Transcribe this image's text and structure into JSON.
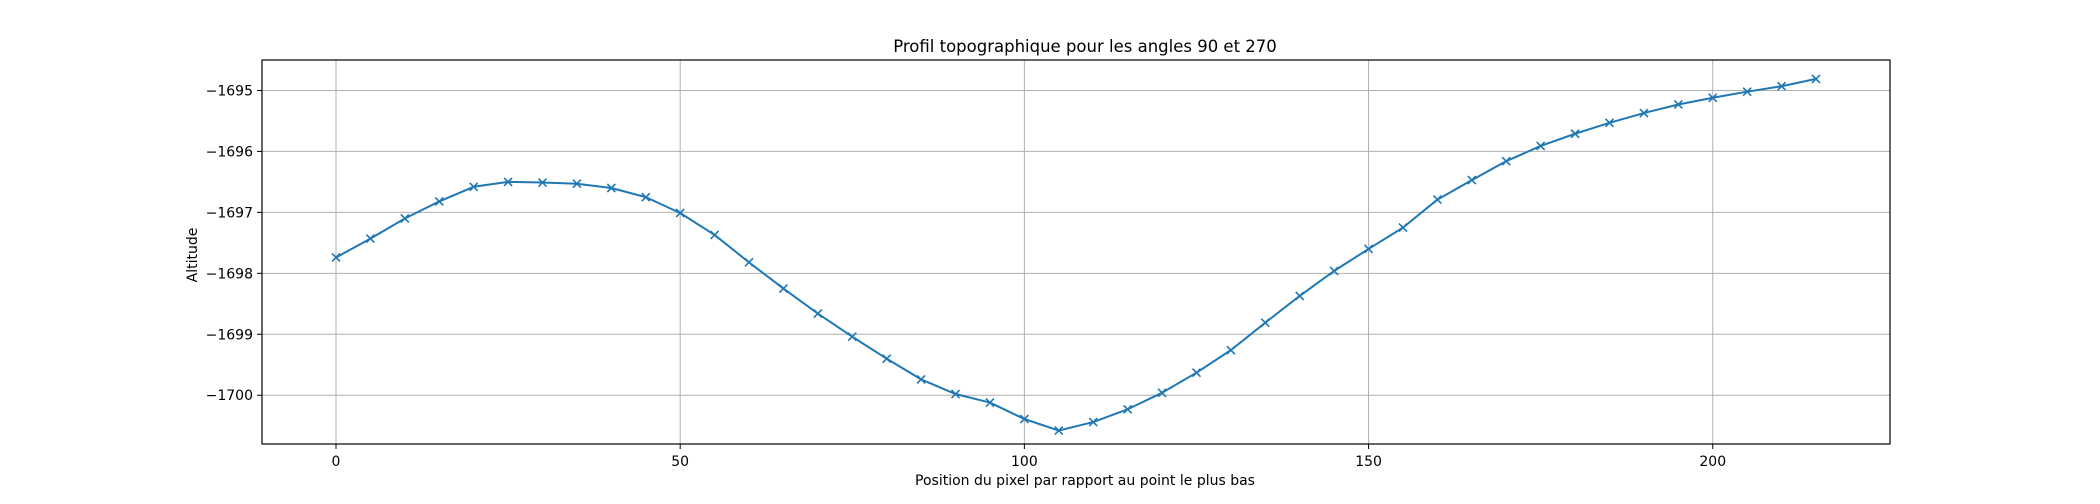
{
  "chart_data": {
    "type": "line",
    "title": "Profil topographique pour les angles 90 et 270",
    "xlabel": "Position du pixel par rapport au point le plus bas",
    "ylabel": "Altitude",
    "xlim": [
      -10.75,
      225.75
    ],
    "ylim": [
      -1700.8,
      -1694.5
    ],
    "xticks": [
      0,
      50,
      100,
      150,
      200
    ],
    "xtick_labels": [
      "0",
      "50",
      "100",
      "150",
      "200"
    ],
    "yticks": [
      -1695,
      -1696,
      -1697,
      -1698,
      -1699,
      -1700
    ],
    "ytick_labels": [
      "−1695",
      "−1696",
      "−1697",
      "−1698",
      "−1699",
      "−1700"
    ],
    "grid": true,
    "legend": false,
    "marker": "x",
    "series": [
      {
        "color": "#1f77b4",
        "x": [
          0,
          5,
          10,
          15,
          20,
          25,
          30,
          35,
          40,
          45,
          50,
          55,
          60,
          65,
          70,
          75,
          80,
          85,
          90,
          95,
          100,
          105,
          110,
          115,
          120,
          125,
          130,
          135,
          140,
          145,
          150,
          155,
          160,
          165,
          170,
          175,
          180,
          185,
          190,
          195,
          200,
          205,
          210,
          215
        ],
        "y": [
          -1697.74,
          -1697.43,
          -1697.1,
          -1696.82,
          -1696.58,
          -1696.5,
          -1696.51,
          -1696.53,
          -1696.6,
          -1696.75,
          -1697.01,
          -1697.37,
          -1697.82,
          -1698.25,
          -1698.66,
          -1699.04,
          -1699.4,
          -1699.74,
          -1699.98,
          -1700.12,
          -1700.39,
          -1700.58,
          -1700.44,
          -1700.23,
          -1699.96,
          -1699.63,
          -1699.26,
          -1698.81,
          -1698.37,
          -1697.96,
          -1697.6,
          -1697.25,
          -1696.79,
          -1696.47,
          -1696.16,
          -1695.91,
          -1695.71,
          -1695.53,
          -1695.37,
          -1695.23,
          -1695.12,
          -1695.02,
          -1694.93,
          -1694.81
        ]
      }
    ]
  }
}
